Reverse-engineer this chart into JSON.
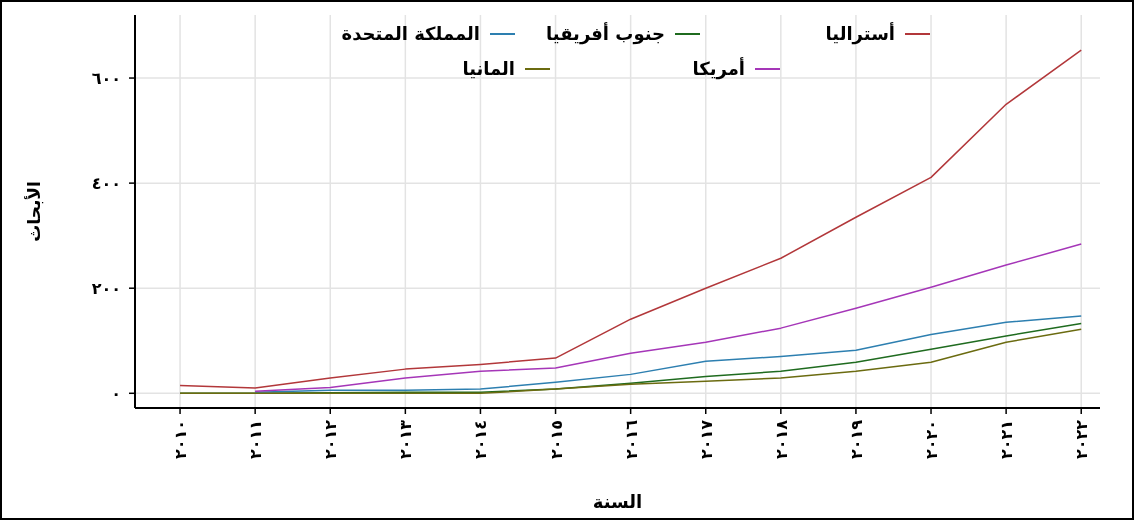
{
  "chart_data": {
    "type": "line",
    "xlabel": "السنة",
    "ylabel": "الأبحاث",
    "x": [
      2010,
      2011,
      2012,
      2013,
      2014,
      2015,
      2016,
      2017,
      2018,
      2019,
      2020,
      2021,
      2022
    ],
    "series": [
      {
        "name": "أستراليا",
        "color": "#b2373a",
        "values": [
          15,
          10,
          29,
          46,
          55,
          67,
          141,
          200,
          257,
          335,
          411,
          550,
          653
        ]
      },
      {
        "name": "جنوب أفريقيا",
        "color": "#1f6b1f",
        "values": [
          0,
          0,
          1,
          2,
          2,
          8,
          19,
          32,
          42,
          59,
          84,
          109,
          133
        ]
      },
      {
        "name": "المملكة المتحدة",
        "color": "#2d7fb0",
        "values": [
          null,
          2,
          6,
          6,
          8,
          21,
          36,
          61,
          70,
          82,
          112,
          135,
          147
        ]
      },
      {
        "name": "أمريكا",
        "color": "#a536b8",
        "values": [
          null,
          4,
          11,
          29,
          42,
          48,
          76,
          97,
          124,
          162,
          202,
          244,
          284
        ]
      },
      {
        "name": "المانيا",
        "color": "#6b6b10",
        "values": [
          0,
          0,
          0,
          0,
          0,
          8,
          17,
          23,
          29,
          42,
          59,
          97,
          122
        ]
      }
    ],
    "xlim": [
      2009.4,
      2022.25
    ],
    "ylim": [
      -28,
      720
    ],
    "xticks": [
      {
        "value": 2010,
        "label": "٢٠١٠"
      },
      {
        "value": 2011,
        "label": "٢٠١١"
      },
      {
        "value": 2012,
        "label": "٢٠١٢"
      },
      {
        "value": 2013,
        "label": "٢٠١٣"
      },
      {
        "value": 2014,
        "label": "٢٠١٤"
      },
      {
        "value": 2015,
        "label": "٢٠١٥"
      },
      {
        "value": 2016,
        "label": "٢٠١٦"
      },
      {
        "value": 2017,
        "label": "٢٠١٧"
      },
      {
        "value": 2018,
        "label": "٢٠١٨"
      },
      {
        "value": 2019,
        "label": "٢٠١٩"
      },
      {
        "value": 2020,
        "label": "٢٠٢٠"
      },
      {
        "value": 2021,
        "label": "٢٠٢١"
      },
      {
        "value": 2022,
        "label": "٢٠٢٢"
      }
    ],
    "yticks": [
      {
        "value": 0,
        "label": "٠"
      },
      {
        "value": 200,
        "label": "٢٠٠"
      },
      {
        "value": 400,
        "label": "٤٠٠"
      },
      {
        "value": 600,
        "label": "٦٠٠"
      }
    ],
    "grid": true,
    "legend": "top",
    "line_style": "solid",
    "marker": "none"
  }
}
